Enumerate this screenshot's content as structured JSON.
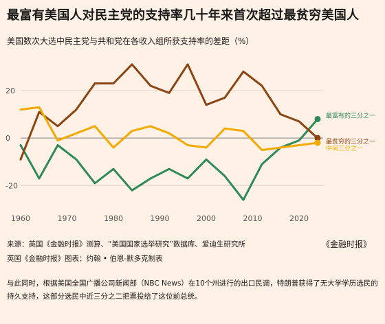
{
  "header": {
    "title": "最富有美国人对民主党的支持率几十年来首次超过最贫穷美国人",
    "subtitle": "美国数次大选中民主党与共和党在各收入组所获支持率的差距（%）"
  },
  "chart_data": {
    "type": "line",
    "title": "最富有美国人对民主党的支持率几十年来首次超过最贫穷美国人",
    "subtitle": "美国数次大选中民主党与共和党在各收入组所获支持率的差距（%）",
    "x": [
      1960,
      1964,
      1968,
      1972,
      1976,
      1980,
      1984,
      1988,
      1992,
      1996,
      2000,
      2004,
      2008,
      2012,
      2016,
      2020,
      2024
    ],
    "xticks": [
      "1960",
      "1970",
      "1980",
      "1990",
      "2000",
      "2010",
      "2020"
    ],
    "yticks": [
      "20",
      "0",
      "-20"
    ],
    "xlim": [
      1960,
      2024
    ],
    "ylim": [
      -30,
      35
    ],
    "grid": "horizontal",
    "series": [
      {
        "name": "最富有的三分之一",
        "color": "#2e8b57",
        "values": [
          -3,
          -17,
          -3,
          -9,
          -19,
          -13,
          -22,
          -17,
          -13,
          -17,
          -9,
          -16,
          -26,
          -11,
          -4,
          -1,
          8
        ]
      },
      {
        "name": "最贫穷的三分之一",
        "color": "#8b4513",
        "values": [
          -9,
          11,
          5,
          12,
          23,
          23,
          31,
          22,
          19,
          31,
          14,
          17,
          28,
          22,
          10,
          7,
          0
        ]
      },
      {
        "name": "中间三分之一",
        "color": "#f2a900",
        "values": [
          12,
          13,
          -1,
          2,
          5,
          -4,
          3,
          5,
          2,
          -3,
          -4,
          4,
          3,
          -5,
          -4,
          -3,
          -2
        ]
      }
    ]
  },
  "source": {
    "line1": "来源：英国《金融时报》测算、“美国国家选举研究”数据库、爱迪生研究所",
    "line2": "英国《金融时报》图表：约翰 • 伯恩-默多克制表",
    "publisher": "《金融时报》"
  },
  "note": "与此同时，根据美国全国广播公司新闻部（NBC News）在10个州进行的出口民调，特朗普获得了无大学学历选民的持久支持，这部分选民中近三分之二把票投给了这位前总统。",
  "colors": {
    "background": "#fff1e5",
    "zero_line": "#999999",
    "grid": "#e3d5c8"
  }
}
